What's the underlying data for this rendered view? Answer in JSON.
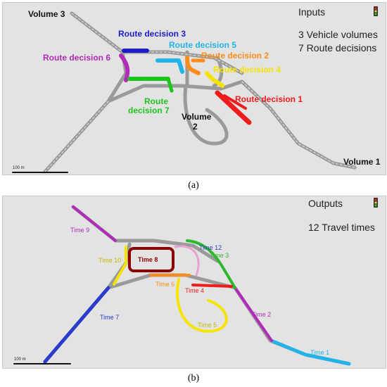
{
  "panel_a": {
    "title": "Inputs",
    "summary_line1": "3 Vehicle volumes",
    "summary_line2": "7 Route decisions",
    "scale": "100 m",
    "labels": {
      "volume3": "Volume 3",
      "volume2_a": "Volume",
      "volume2_b": "2",
      "volume1": "Volume 1",
      "rd1": "Route decision 1",
      "rd2": "Route decision 2",
      "rd3": "Route decision 3",
      "rd4": "Route decision 4",
      "rd5": "Route decision 5",
      "rd6": "Route decision 6",
      "rd7_a": "Route",
      "rd7_b": "decision 7"
    },
    "caption": "(a)"
  },
  "panel_b": {
    "title": "Outputs",
    "summary": "12 Travel times",
    "scale": "100 m",
    "labels": {
      "t1": "Time 1",
      "t2": "Time 2",
      "t3": "Time 3",
      "t4": "Time 4",
      "t5": "Time 5",
      "t6": "Time 6",
      "t7": "Time 7",
      "t8": "Time 8",
      "t9": "Time 9",
      "t10": "Time 10",
      "t12": "Time 12"
    },
    "caption": "(b)"
  },
  "colors": {
    "road": "#9a9a9a",
    "red": "#ee1c1c",
    "orange": "#ff8c1a",
    "yellow": "#f5e400",
    "cyan": "#22b4e8",
    "blue": "#1c1ccc",
    "magenta": "#b02cb8",
    "green": "#1ec41e",
    "darkred": "#8b0000",
    "time_blue": "#2a3ccc",
    "time_pink": "#e7a0d0",
    "time_green": "#2cb82c"
  },
  "icons": [
    "traffic-light-icon"
  ]
}
